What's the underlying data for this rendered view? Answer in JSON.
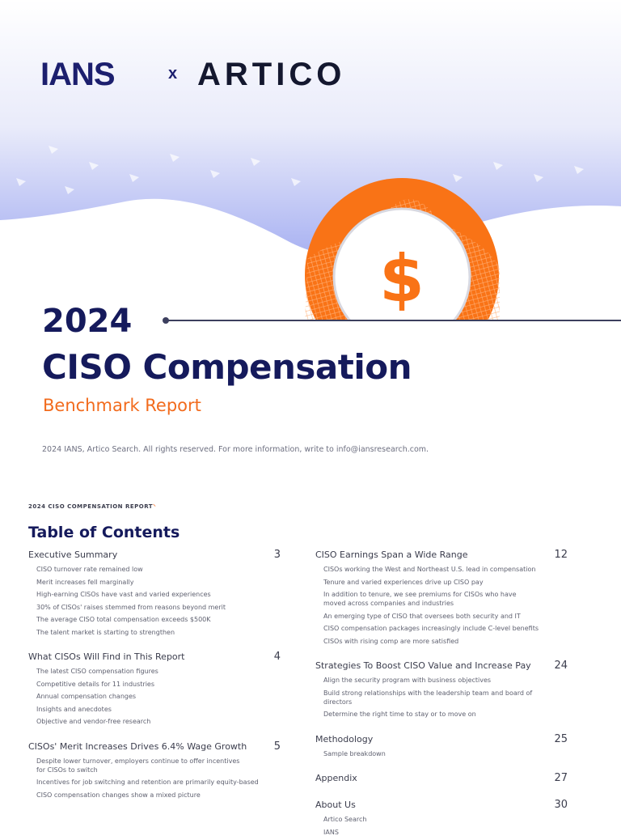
{
  "logos": {
    "ians": "IANS",
    "separator": "x",
    "artico": "ARTICO"
  },
  "cover": {
    "year": "2024",
    "title": "CISO Compensation",
    "subtitle": "Benchmark Report",
    "icon": "dollar-sign-icon",
    "copyright": "2024 IANS, Artico Search. All rights reserved. For more information, write to info@iansresearch.com."
  },
  "colors": {
    "navy": "#151a5c",
    "orange": "#f26b1d"
  },
  "toc": {
    "running_header": "2024 CISO COMPENSATION REPORT",
    "title": "Table of Contents",
    "left": [
      {
        "title": "Executive Summary",
        "page": "3",
        "items": [
          "CISO turnover rate remained low",
          "Merit increases fell marginally",
          "High-earning CISOs have vast and varied experiences",
          "30% of CISOs' raises stemmed from reasons beyond merit",
          "The average CISO total compensation exceeds $500K",
          "The talent market is starting to strengthen"
        ]
      },
      {
        "title": "What CISOs Will Find in This Report",
        "page": "4",
        "items": [
          "The latest CISO compensation figures",
          "Competitive details for 11 industries",
          "Annual compensation changes",
          "Insights and anecdotes",
          "Objective and vendor-free research"
        ]
      },
      {
        "title": "CISOs' Merit Increases Drives 6.4% Wage Growth",
        "page": "5",
        "items": [
          "Despite lower turnover, employers continue to offer incentives for CISOs to switch",
          "Incentives for job switching and retention are primarily equity-based",
          "CISO compensation changes show a mixed picture"
        ]
      }
    ],
    "right": [
      {
        "title": "CISO Earnings Span a Wide Range",
        "page": "12",
        "items": [
          "CISOs working the West and Northeast U.S. lead in compensation",
          "Tenure and varied experiences drive up CISO pay",
          "In addition to tenure, we see premiums for CISOs who have moved across companies and industries",
          "An emerging type of CISO that oversees both security and IT",
          "CISO compensation packages increasingly include C-level benefits",
          "CISOs with rising comp are more satisfied"
        ]
      },
      {
        "title": "Strategies To Boost CISO Value and Increase Pay",
        "page": "24",
        "items": [
          "Align the security program with business objectives",
          "Build strong relationships with the leadership team and board of directors",
          "Determine the right time to stay or to move on"
        ]
      },
      {
        "title": "Methodology",
        "page": "25",
        "items": [
          "Sample breakdown"
        ]
      },
      {
        "title": "Appendix",
        "page": "27",
        "items": []
      },
      {
        "title": "About Us",
        "page": "30",
        "items": [
          "Artico Search",
          "IANS"
        ]
      }
    ]
  }
}
